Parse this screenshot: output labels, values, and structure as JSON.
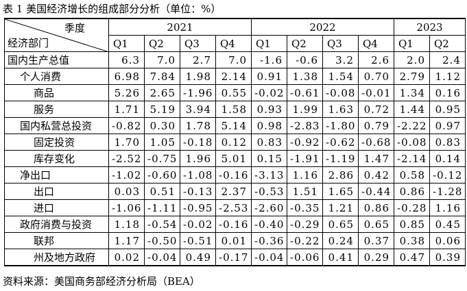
{
  "caption": "表 1  美国经济增长的组成部分分析（单位：%）",
  "header": {
    "corner_top": "季度",
    "corner_bottom": "经济部门",
    "years": [
      {
        "label": "2021",
        "span": 4
      },
      {
        "label": "2022",
        "span": 4
      },
      {
        "label": "2023",
        "span": 2
      }
    ],
    "quarters": [
      "Q1",
      "Q2",
      "Q3",
      "Q4",
      "Q1",
      "Q2",
      "Q3",
      "Q4",
      "Q1",
      "Q2"
    ]
  },
  "rows": [
    {
      "label": "国内生产总值",
      "level": 0,
      "values": [
        "6.3",
        "7.0",
        "2.7",
        "7.0",
        "-1.6",
        "-0.6",
        "3.2",
        "2.6",
        "2.0",
        "2.4"
      ]
    },
    {
      "label": "个人消费",
      "level": 1,
      "values": [
        "6.98",
        "7.84",
        "1.98",
        "2.14",
        "0.91",
        "1.38",
        "1.54",
        "0.70",
        "2.79",
        "1.12"
      ]
    },
    {
      "label": "商品",
      "level": 2,
      "values": [
        "5.26",
        "2.65",
        "-1.96",
        "0.55",
        "-0.02",
        "-0.61",
        "-0.08",
        "-0.01",
        "1.34",
        "0.16"
      ]
    },
    {
      "label": "服务",
      "level": 2,
      "values": [
        "1.71",
        "5.19",
        "3.94",
        "1.58",
        "0.93",
        "1.99",
        "1.63",
        "0.72",
        "1.44",
        "0.95"
      ]
    },
    {
      "label": "国内私营总投资",
      "level": 1,
      "values": [
        "-0.82",
        "0.30",
        "1.78",
        "5.14",
        "0.98",
        "-2.83",
        "-1.80",
        "0.79",
        "-2.22",
        "0.97"
      ]
    },
    {
      "label": "固定投资",
      "level": 2,
      "values": [
        "1.70",
        "1.05",
        "-0.18",
        "0.12",
        "0.83",
        "-0.92",
        "-0.62",
        "-0.68",
        "-0.08",
        "0.83"
      ]
    },
    {
      "label": "库存变化",
      "level": 2,
      "values": [
        "-2.52",
        "-0.75",
        "1.96",
        "5.01",
        "0.15",
        "-1.91",
        "-1.19",
        "1.47",
        "-2.14",
        "0.14"
      ]
    },
    {
      "label": "净出口",
      "level": 1,
      "values": [
        "-1.02",
        "-0.60",
        "-1.08",
        "-0.16",
        "-3.13",
        "1.16",
        "2.86",
        "0.42",
        "0.58",
        "-0.12"
      ]
    },
    {
      "label": "出口",
      "level": 2,
      "values": [
        "0.03",
        "0.51",
        "-0.13",
        "2.37",
        "-0.53",
        "1.51",
        "1.65",
        "-0.44",
        "0.86",
        "-1.28"
      ]
    },
    {
      "label": "进口",
      "level": 2,
      "values": [
        "-1.06",
        "-1.11",
        "-0.95",
        "-2.53",
        "-2.60",
        "-0.35",
        "1.21",
        "0.86",
        "-0.28",
        "1.16"
      ]
    },
    {
      "label": "政府消费与投资",
      "level": 1,
      "values": [
        "1.18",
        "-0.54",
        "-0.02",
        "-0.16",
        "-0.40",
        "-0.29",
        "0.65",
        "0.65",
        "0.85",
        "0.45"
      ]
    },
    {
      "label": "联邦",
      "level": 2,
      "values": [
        "1.17",
        "-0.50",
        "-0.51",
        "0.01",
        "-0.36",
        "-0.22",
        "0.24",
        "0.37",
        "0.38",
        "0.06"
      ]
    },
    {
      "label": "州及地方政府",
      "level": 2,
      "values": [
        "0.02",
        "-0.04",
        "0.49",
        "-0.17",
        "-0.04",
        "-0.06",
        "0.41",
        "0.29",
        "0.47",
        "0.39"
      ]
    }
  ],
  "source": "资料来源：美国商务部经济分析局（BEA）"
}
